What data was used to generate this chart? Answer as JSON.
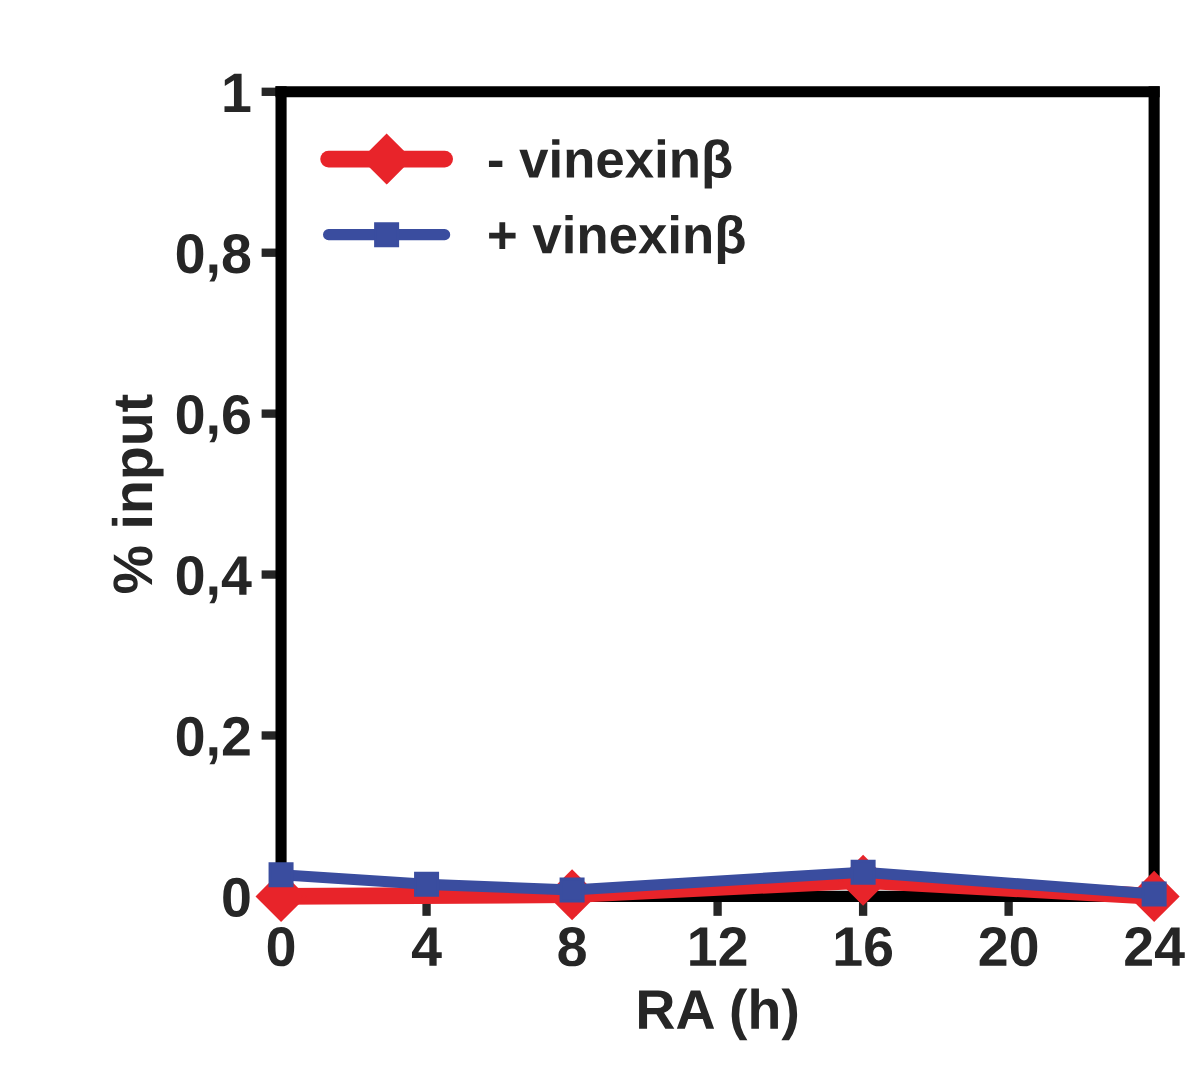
{
  "chart_data": {
    "type": "line",
    "xlabel": "RA (h)",
    "ylabel": "% input",
    "xlim": [
      0,
      24
    ],
    "xticks": [
      0,
      4,
      8,
      12,
      16,
      20,
      24
    ],
    "ylim": [
      0,
      1
    ],
    "yticks": [
      0,
      {
        "value": 0.2,
        "label": "0,2"
      },
      {
        "value": 0.4,
        "label": "0,4"
      },
      {
        "value": 0.6,
        "label": "0,6"
      },
      {
        "value": 0.8,
        "label": "0,8"
      },
      1
    ],
    "grid": false,
    "legend": "top left",
    "series": [
      {
        "name": "- vinexinβ",
        "color": "#e8242a",
        "marker": "diamond",
        "x": [
          0,
          8,
          16,
          24
        ],
        "values": [
          0.0,
          0.002,
          0.02,
          0.0
        ]
      },
      {
        "name": "+ vinexinβ",
        "color": "#3a4d9f",
        "marker": "square",
        "x": [
          0,
          4,
          8,
          16,
          24
        ],
        "values": [
          0.027,
          0.015,
          0.008,
          0.03,
          0.003
        ]
      }
    ]
  }
}
